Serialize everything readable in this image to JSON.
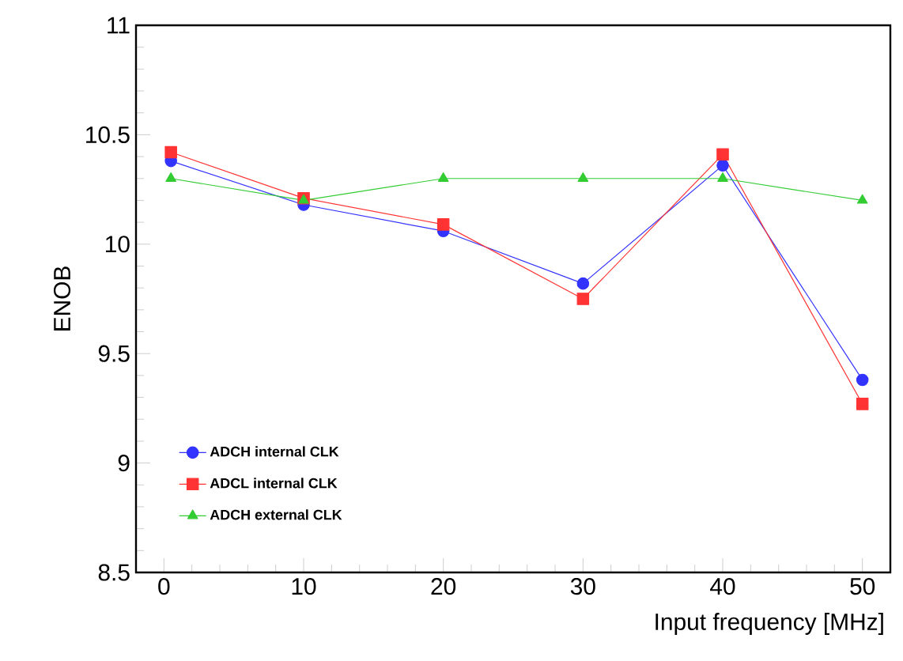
{
  "chart_data": {
    "type": "line",
    "xlabel": "Input frequency [MHz]",
    "ylabel": "ENOB",
    "x": [
      0.5,
      10,
      20,
      30,
      40,
      50
    ],
    "xlim": [
      -2,
      52
    ],
    "xticks": [
      0,
      10,
      20,
      30,
      40,
      50
    ],
    "ylim": [
      8.5,
      11
    ],
    "yticks": [
      {
        "value": 8.5,
        "label": "8.5"
      },
      {
        "value": 9,
        "label": "9"
      },
      {
        "value": 9.5,
        "label": "9.5"
      },
      {
        "value": 10,
        "label": "10"
      },
      {
        "value": 10.5,
        "label": "10.5"
      },
      {
        "value": 11,
        "label": "11"
      }
    ],
    "legend": "bottom left",
    "grid": false,
    "series": [
      {
        "name": "ADCH internal CLK",
        "color": "#3333ff",
        "marker": "circle",
        "values": [
          10.38,
          10.18,
          10.06,
          9.82,
          10.36,
          9.38
        ]
      },
      {
        "name": "ADCL internal CLK",
        "color": "#ff3333",
        "marker": "square",
        "values": [
          10.42,
          10.21,
          10.09,
          9.75,
          10.41,
          9.27
        ]
      },
      {
        "name": "ADCH external CLK",
        "color": "#33cc33",
        "marker": "triangle",
        "values": [
          10.3,
          10.2,
          10.3,
          10.3,
          10.3,
          10.2
        ]
      }
    ]
  }
}
